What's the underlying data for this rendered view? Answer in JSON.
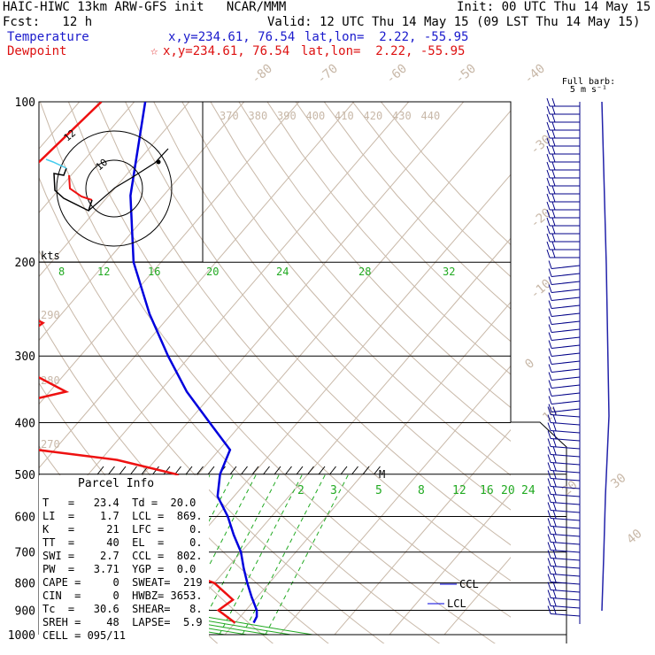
{
  "header": {
    "title": "HAIC-HIWC 13km ARW-GFS init   NCAR/MMM",
    "init": "Init: 00 UTC Thu 14 May 15",
    "fcst": "Fcst:   12 h",
    "valid": "Valid: 12 UTC Thu 14 May 15 (09 LST Thu 14 May 15)",
    "temp_legend": "Temperature",
    "temp_coords": "x,y=234.61, 76.54",
    "temp_latlon": "lat,lon=  2.22, -55.95",
    "dew_legend": "Dewpoint",
    "dew_coords": "x,y=234.61, 76.54",
    "dew_latlon": "lat,lon=  2.22, -55.95",
    "star": "☆"
  },
  "colors": {
    "temperature": "#0000dd",
    "dewpoint": "#ee1111",
    "isotherm": "#c8b8a8",
    "theta": "#c8b8a8",
    "moist": "#22aa22",
    "mixing": "#22aa22",
    "hodo_line": "#000000",
    "hodo_red": "#ee1111",
    "hodo_cyan": "#44ccee",
    "barb": "#000088",
    "rh_bar": "#2222aa"
  },
  "chart_data": {
    "type": "line",
    "chart_kind": "skew-T log-P sounding",
    "y_axis": "pressure (hPa), log scale",
    "pressure_ticks": [
      100,
      200,
      300,
      400,
      500,
      600,
      700,
      800,
      900,
      1000
    ],
    "isotherm_labels": [
      "-80",
      "-70",
      "-60",
      "-50",
      "-40",
      "-30",
      "-20",
      "-10",
      "0",
      "10",
      "20",
      "30",
      "40"
    ],
    "theta_labels_top": [
      "370",
      "380",
      "390",
      "400",
      "410",
      "420",
      "430",
      "440"
    ],
    "theta_labels_left": [
      "290",
      "280",
      "270"
    ],
    "wind_speed_labels": [
      "kts",
      "8",
      "12",
      "16",
      "20",
      "24",
      "28",
      "32"
    ],
    "mixing_labels": [
      "2",
      "3",
      "5",
      "8",
      "12",
      "16",
      "20",
      "24"
    ],
    "barb_label": [
      "Full barb:",
      "5 m s⁻¹"
    ],
    "series": [
      {
        "name": "Temperature",
        "p": [
          100,
          150,
          200,
          250,
          300,
          350,
          400,
          450,
          500,
          550,
          600,
          650,
          700,
          750,
          800,
          850,
          900,
          925,
          950
        ],
        "t": [
          -78,
          -66,
          -55,
          -44,
          -34,
          -25,
          -16,
          -8,
          -6,
          -3,
          2,
          6,
          10,
          13,
          16,
          19,
          22,
          23,
          23.4
        ]
      },
      {
        "name": "Dewpoint",
        "p": [
          100,
          150,
          200,
          220,
          260,
          300,
          350,
          370,
          400,
          430,
          470,
          500,
          540,
          600,
          650,
          700,
          800,
          860,
          900,
          950
        ],
        "td": [
          -86,
          -89,
          -86,
          -83,
          -62,
          -65,
          -47,
          -55,
          -69,
          -60,
          -27,
          -14,
          -7,
          -10,
          -14,
          -10,
          10,
          16,
          15,
          20
        ]
      }
    ],
    "annotations": [
      "M",
      "CCL",
      "LCL"
    ],
    "xlim": [
      -40,
      40
    ],
    "ylim": [
      100,
      1000
    ]
  },
  "parcel": {
    "title": "Parcel Info",
    "rows": [
      "T   =   23.4  Td =  20.0",
      "LI  =    1.7  LCL =  869.",
      "K   =     21  LFC =    0.",
      "TT  =     40  EL  =    0.",
      "SWI =    2.7  CCL =  802.",
      "PW  =   3.71  YGP =  0.0",
      "CAPE =     0  SWEAT=  219",
      "CIN  =     0  HWBZ= 3653.",
      "Tc  =   30.6  SHEAR=   8.",
      "SREH =    48  LAPSE=  5.9",
      "CELL = 095/11"
    ]
  },
  "hodograph": {
    "label_a": "12",
    "label_b": "10"
  }
}
